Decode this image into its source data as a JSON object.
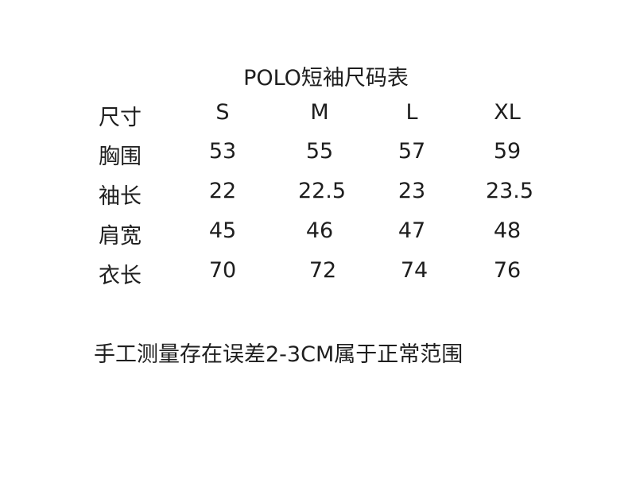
{
  "title": "POLO短袖尺码表",
  "header": {
    "label": "尺寸",
    "sizes": [
      "S",
      "M",
      "L",
      "XL"
    ]
  },
  "rows": [
    {
      "label": "胸围",
      "values": [
        "53",
        "55",
        "57",
        "59"
      ]
    },
    {
      "label": "袖长",
      "values": [
        "22",
        "22.5",
        "23",
        "23.5"
      ]
    },
    {
      "label": "肩宽",
      "values": [
        "45",
        "46",
        "47",
        "48"
      ]
    },
    {
      "label": "衣长",
      "values": [
        "70",
        "72",
        "74",
        "76"
      ]
    }
  ],
  "note": "手工测量存在误差2-3CM属于正常范围"
}
